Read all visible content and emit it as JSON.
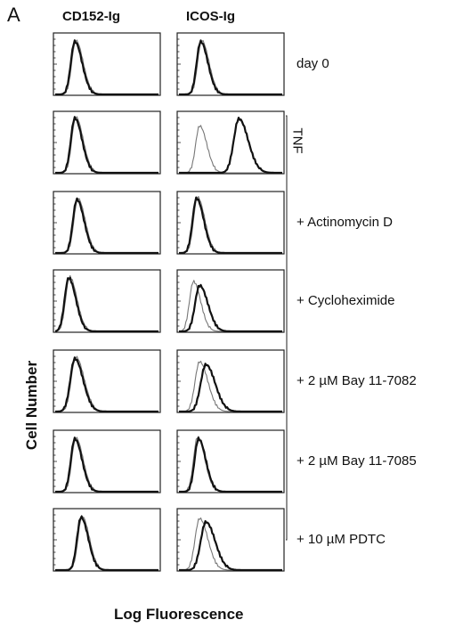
{
  "panel_letter": "A",
  "column_headers": [
    "CD152-Ig",
    "ICOS-Ig"
  ],
  "row_labels": [
    "day 0",
    "",
    "+ Actinomycin D",
    "+ Cycloheximide",
    "+ 2 µM Bay 11-7082",
    "+ 2 µM Bay 11-7085",
    "+ 10 µM PDTC"
  ],
  "bracket_label": "TNF",
  "ylabel": "Cell Number",
  "xlabel": "Log Fluorescence",
  "chart_data": {
    "type": "line",
    "description_of_axes": "flow cytometry histograms; x = log fluorescence (0-1 relative scale), y = relative cell number (0-1)",
    "x_range": [
      0,
      1
    ],
    "y_range": [
      0,
      1
    ],
    "panels": [
      {
        "row": 0,
        "column": "CD152-Ig",
        "series": [
          {
            "peak": 0.2,
            "width": 0.07,
            "height": 0.92
          },
          {
            "peak": 0.19,
            "width": 0.07,
            "height": 0.9
          }
        ]
      },
      {
        "row": 0,
        "column": "ICOS-Ig",
        "series": [
          {
            "peak": 0.22,
            "width": 0.07,
            "height": 0.92
          },
          {
            "peak": 0.21,
            "width": 0.07,
            "height": 0.9
          }
        ]
      },
      {
        "row": 1,
        "column": "CD152-Ig",
        "series": [
          {
            "peak": 0.2,
            "width": 0.07,
            "height": 0.95
          },
          {
            "peak": 0.19,
            "width": 0.07,
            "height": 0.93
          }
        ]
      },
      {
        "row": 1,
        "column": "ICOS-Ig",
        "series": [
          {
            "peak": 0.2,
            "width": 0.07,
            "height": 0.8
          },
          {
            "peak": 0.58,
            "width": 0.09,
            "height": 0.92
          }
        ]
      },
      {
        "row": 2,
        "column": "CD152-Ig",
        "series": [
          {
            "peak": 0.22,
            "width": 0.07,
            "height": 0.93
          },
          {
            "peak": 0.21,
            "width": 0.07,
            "height": 0.91
          }
        ]
      },
      {
        "row": 2,
        "column": "ICOS-Ig",
        "series": [
          {
            "peak": 0.18,
            "width": 0.07,
            "height": 0.95
          },
          {
            "peak": 0.17,
            "width": 0.07,
            "height": 0.93
          }
        ]
      },
      {
        "row": 3,
        "column": "CD152-Ig",
        "series": [
          {
            "peak": 0.14,
            "width": 0.07,
            "height": 0.93
          },
          {
            "peak": 0.13,
            "width": 0.07,
            "height": 0.91
          }
        ]
      },
      {
        "row": 3,
        "column": "ICOS-Ig",
        "series": [
          {
            "peak": 0.14,
            "width": 0.07,
            "height": 0.85
          },
          {
            "peak": 0.2,
            "width": 0.08,
            "height": 0.78
          }
        ]
      },
      {
        "row": 4,
        "column": "CD152-Ig",
        "series": [
          {
            "peak": 0.2,
            "width": 0.08,
            "height": 0.93
          },
          {
            "peak": 0.19,
            "width": 0.08,
            "height": 0.9
          }
        ]
      },
      {
        "row": 4,
        "column": "ICOS-Ig",
        "series": [
          {
            "peak": 0.2,
            "width": 0.08,
            "height": 0.85
          },
          {
            "peak": 0.26,
            "width": 0.09,
            "height": 0.8
          }
        ]
      },
      {
        "row": 5,
        "column": "CD152-Ig",
        "series": [
          {
            "peak": 0.2,
            "width": 0.07,
            "height": 0.92
          },
          {
            "peak": 0.19,
            "width": 0.07,
            "height": 0.9
          }
        ]
      },
      {
        "row": 5,
        "column": "ICOS-Ig",
        "series": [
          {
            "peak": 0.18,
            "width": 0.07,
            "height": 0.93
          },
          {
            "peak": 0.19,
            "width": 0.07,
            "height": 0.9
          }
        ]
      },
      {
        "row": 6,
        "column": "CD152-Ig",
        "series": [
          {
            "peak": 0.26,
            "width": 0.07,
            "height": 0.92
          },
          {
            "peak": 0.25,
            "width": 0.07,
            "height": 0.9
          }
        ]
      },
      {
        "row": 6,
        "column": "ICOS-Ig",
        "series": [
          {
            "peak": 0.2,
            "width": 0.08,
            "height": 0.88
          },
          {
            "peak": 0.26,
            "width": 0.09,
            "height": 0.82
          }
        ]
      }
    ]
  },
  "colors": {
    "thick_line": "#111111",
    "thin_line": "#777777",
    "frame": "#222222"
  }
}
